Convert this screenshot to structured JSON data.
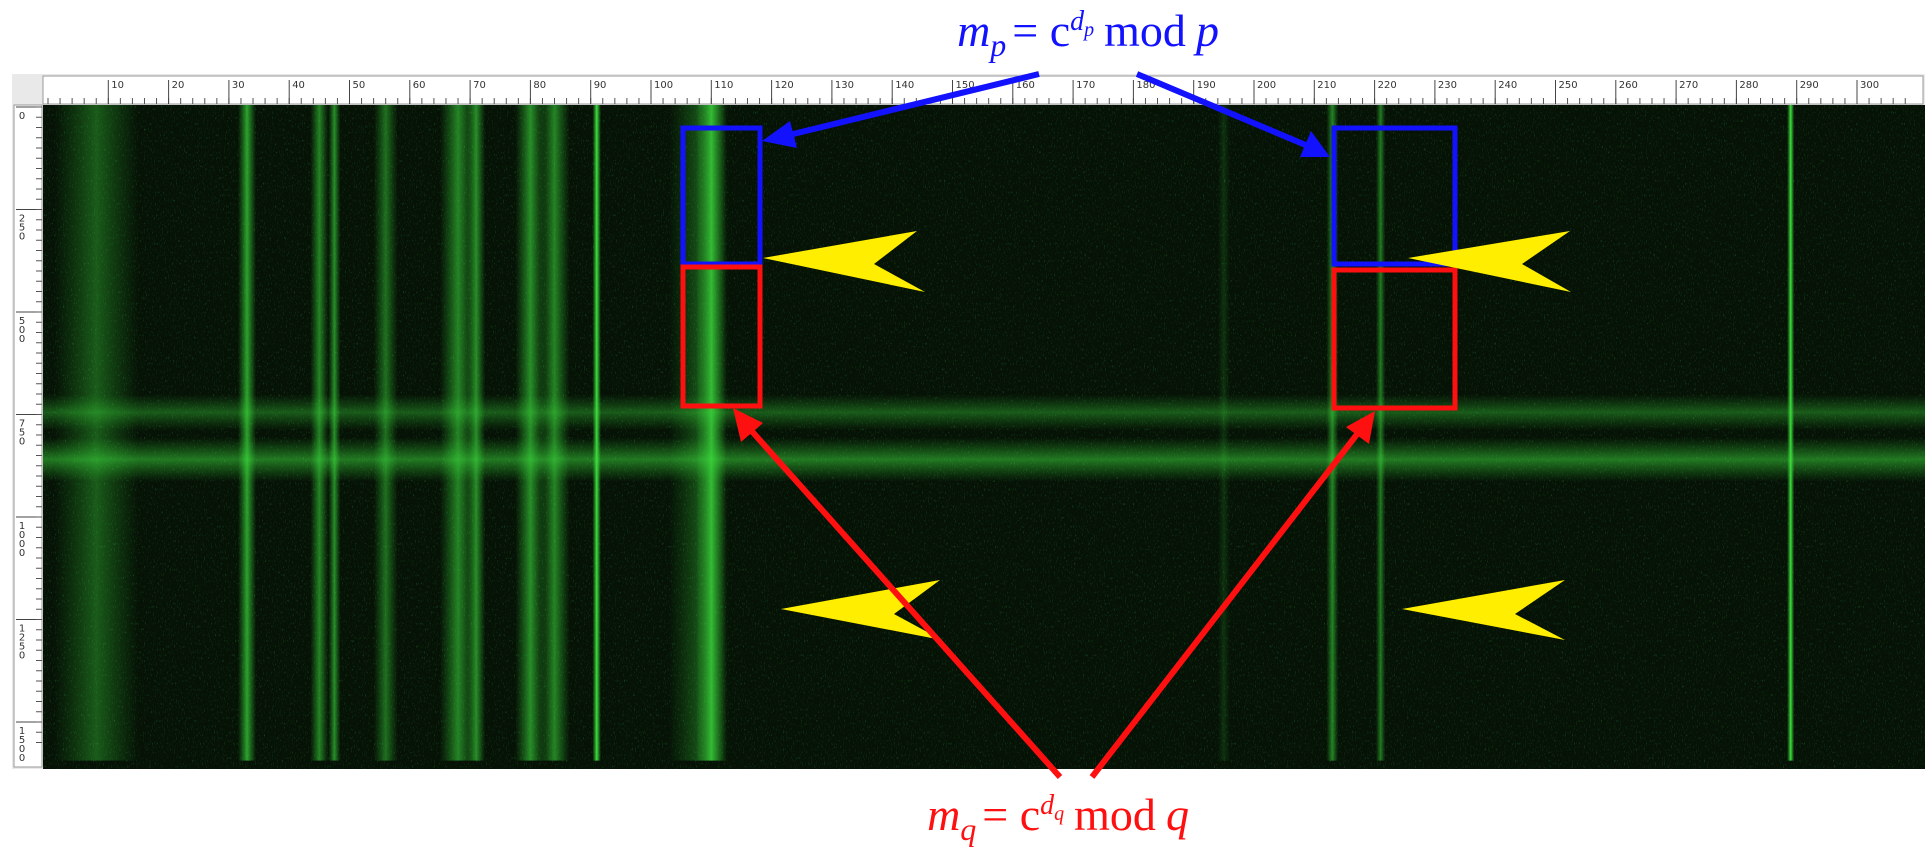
{
  "ruler": {
    "x_labels": [
      10,
      20,
      30,
      40,
      50,
      60,
      70,
      80,
      90,
      100,
      110,
      120,
      130,
      140,
      150,
      160,
      170,
      180,
      190,
      200,
      210,
      220,
      230,
      240,
      250,
      260,
      270,
      280,
      290,
      300
    ],
    "y_labels": [
      0,
      250,
      500,
      750,
      1000,
      1250,
      1500
    ]
  },
  "annotations": {
    "top": {
      "var": "m",
      "var_sub": "p",
      "op": "= c",
      "exp": "d",
      "exp_sub": "p",
      "mod": "mod",
      "mod_var": "p"
    },
    "bottom": {
      "var": "m",
      "var_sub": "q",
      "op": "= c",
      "exp": "d",
      "exp_sub": "q",
      "mod": "mod",
      "mod_var": "q"
    }
  }
}
